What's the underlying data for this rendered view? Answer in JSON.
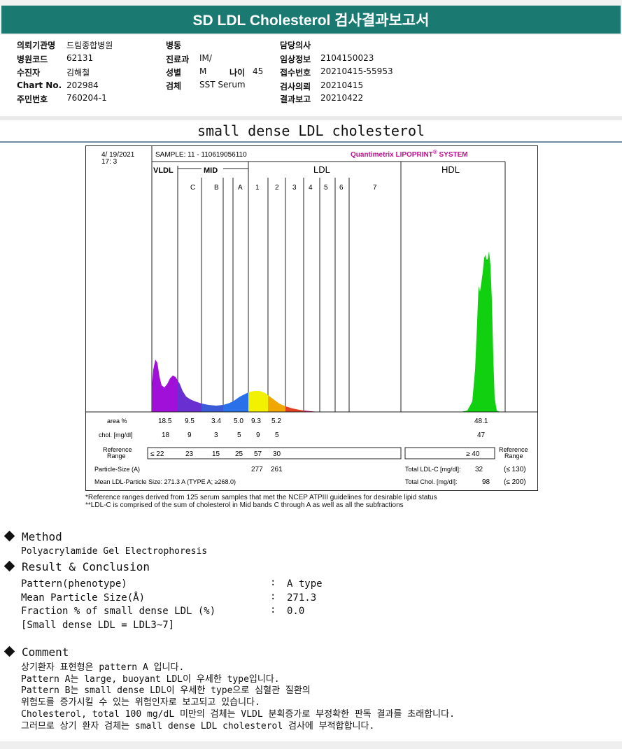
{
  "header": {
    "title": "SD LDL Cholesterol 검사결과보고서"
  },
  "patient_info": [
    {
      "label": "의뢰기관명",
      "value": "드림종합병원"
    },
    {
      "label": "병원코드",
      "value": "62131"
    },
    {
      "label": "수진자",
      "value": "김해철"
    },
    {
      "label": "Chart No.",
      "value": "202984"
    },
    {
      "label": "주민번호",
      "value": "760204-1"
    },
    {
      "label": "병동",
      "value": ""
    },
    {
      "label": "진료과",
      "value": "IM/"
    },
    {
      "label": "성별",
      "value": "M"
    },
    {
      "label": "나이",
      "value": "45"
    },
    {
      "label": "검체",
      "value": "SST Serum"
    },
    {
      "label": "담당의사",
      "value": ""
    },
    {
      "label": "임상정보",
      "value": "2104150023"
    },
    {
      "label": "접수번호",
      "value": "20210415-55953"
    },
    {
      "label": "검사의뢰",
      "value": "20210415"
    },
    {
      "label": "결과보고",
      "value": "20210422"
    }
  ],
  "subtitle": "small dense LDL cholesterol",
  "chart": {
    "datetime_line1": "4/ 19/2021",
    "datetime_line2": "17:  3",
    "sample": "SAMPLE:   11 - 110619056110",
    "brand": "Quantimetrix LIPOPRINT",
    "brand_mark": "®",
    "brand_suffix": " SYSTEM",
    "groups": {
      "vldl": "VLDL",
      "mid": "MID",
      "ldl": "LDL",
      "hdl": "HDL"
    },
    "band_labels": [
      "C",
      "B",
      "A",
      "1",
      "2",
      "3",
      "4",
      "5",
      "6",
      "7"
    ],
    "row_labels": {
      "area": "area %",
      "chol": "chol. [mg/dl]",
      "ref_range": "Reference Range",
      "ref_range_right": "Reference Range"
    },
    "colors": {
      "vldl": "#a010d8",
      "mid_c": "#6a2fd0",
      "mid_b": "#3a5ad8",
      "mid_a": "#2a70e8",
      "ldl1": "#f2f200",
      "ldl2": "#f0a800",
      "ldl3": "#e04020",
      "ldl4": "#d0186a",
      "hdl": "#10d010"
    }
  },
  "chart_data": {
    "type": "area",
    "title": "",
    "bands": [
      "VLDL",
      "MID C",
      "MID B",
      "MID A",
      "LDL1",
      "LDL2",
      "LDL3",
      "LDL4",
      "LDL5",
      "LDL6",
      "LDL7",
      "HDL"
    ],
    "area_percent": [
      "18.5",
      "9.5",
      "3.4",
      "5.0",
      "9.3",
      "5.2",
      "",
      "",
      "",
      "",
      "",
      "48.1"
    ],
    "chol_mg_dl": [
      "18",
      "9",
      "3",
      "5",
      "9",
      "5",
      "",
      "",
      "",
      "",
      "",
      "47"
    ],
    "reference_range": [
      "≤ 22",
      "23",
      "15",
      "25",
      "57",
      "30"
    ],
    "hdl_reference": "≥ 40",
    "particle_size_label": "Particle-Size (A)",
    "particle_size_values": [
      "277",
      "261"
    ],
    "mean_particle_size": "Mean LDL-Particle Size:   271.3 A   (TYPE A; ≥268.0)",
    "total_ldl_c_label": "Total LDL-C [mg/dl]:",
    "total_ldl_c": "32",
    "total_ldl_c_ref": "(≤ 130)",
    "total_chol_label": "Total Chol. [mg/dl]:",
    "total_chol": "98",
    "total_chol_ref": "(≤ 200)"
  },
  "notes": {
    "line1": "*Reference ranges derived from 125 serum samples that met the NCEP ATPIII guidelines for desirable lipid status",
    "line2": "**LDL-C is comprised of the sum of cholesterol in Mid bands C through A as well as all the subfractions"
  },
  "method": {
    "heading": "Method",
    "text": "Polyacrylamide Gel Electrophoresis"
  },
  "result": {
    "heading": "Result & Conclusion",
    "rows": [
      {
        "label": "Pattern(phenotype)",
        "sep": ":",
        "value": "A type"
      },
      {
        "label": "Mean Particle Size(Å)",
        "sep": ":",
        "value": "271.3"
      },
      {
        "label": "Fraction % of small dense LDL (%)",
        "sep": ":",
        "value": "0.0"
      }
    ],
    "note": "[Small dense LDL = LDL3~7]"
  },
  "comment": {
    "heading": "Comment",
    "lines": [
      "상기환자 표현형은 pattern A 입니다.",
      "Pattern A는 large, buoyant LDL이 우세한 type입니다.",
      "Pattern B는 small dense LDL이 우세한 type으로 심혈관 질환의",
      "위험도를 증가시킬 수 있는 위험인자로 보고되고 있습니다.",
      "Cholesterol, total 100 mg/dL 미만의 검체는 VLDL 분획증가로 부정확한 판독 결과를 초래합니다.",
      "그러므로 상기 환자 검체는 small dense LDL cholesterol 검사에 부적합합니다."
    ]
  }
}
